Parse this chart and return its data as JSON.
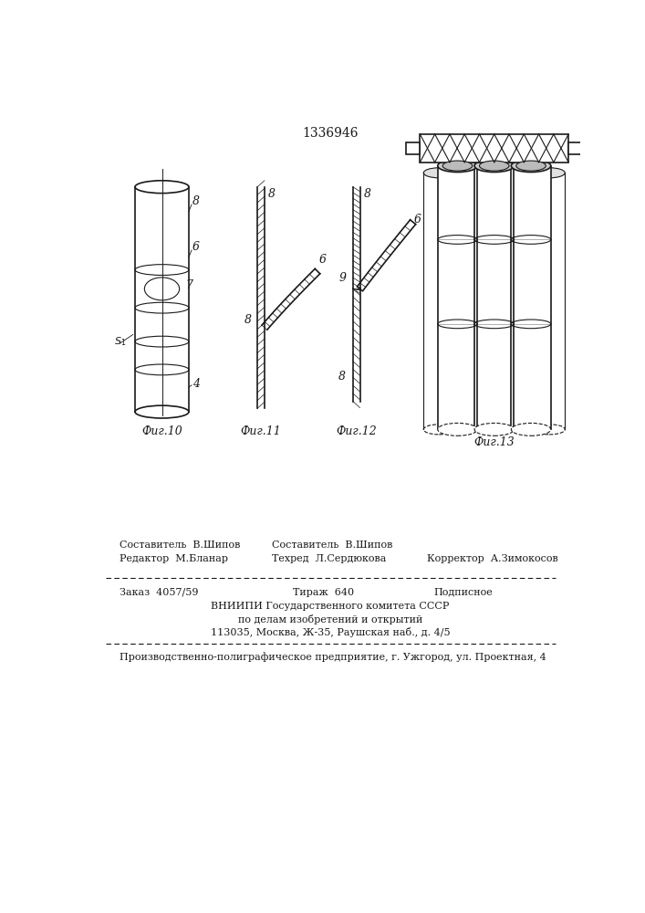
{
  "patent_number": "1336946",
  "bg_color": "#ffffff",
  "line_color": "#1a1a1a",
  "footer_line1_left": "Редактор  М.Бланар",
  "footer_line1_mid_top": "Составитель  В.Шипов",
  "footer_line1_mid_bot": "Техред  Л.Сердюкова",
  "footer_line1_right": "Корректор  А.Зимокосов",
  "footer_line2a": "Заказ  4057/59",
  "footer_line2b": "Тираж  640",
  "footer_line2c": "Подписное",
  "footer_line3": "ВНИИПИ Государственного комитета СССР",
  "footer_line4": "по делам изобретений и открытий",
  "footer_line5": "113035, Москва, Ж-35, Раушская наб., д. 4/5",
  "footer_line6": "Производственно-полиграфическое предприятие, г. Ужгород, ул. Проектная, 4"
}
